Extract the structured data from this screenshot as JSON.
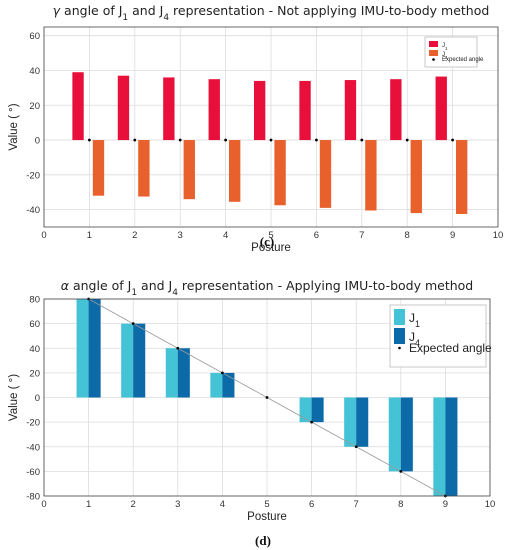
{
  "chart_data": [
    {
      "type": "bar",
      "title": "γ angle of J1 and J4 representation - Not applying IMU-to-body method",
      "title_symbol": "γ",
      "title_rest": " angle of J",
      "title_sub1": "1",
      "title_mid": " and J",
      "title_sub2": "4",
      "title_tail": " representation - Not applying IMU-to-body method",
      "xlabel": "Posture",
      "ylabel": "Value ( °)",
      "xlim": [
        0,
        10
      ],
      "ylim": [
        -50,
        65
      ],
      "xticks": [
        0,
        1,
        2,
        3,
        4,
        5,
        6,
        7,
        8,
        9,
        10
      ],
      "yticks": [
        -40,
        -20,
        0,
        20,
        40,
        60
      ],
      "grid": true,
      "legend_position": "top-right",
      "caption": "(c)",
      "x": [
        1,
        2,
        3,
        4,
        5,
        6,
        7,
        8,
        9
      ],
      "series": [
        {
          "name": "J1",
          "legend_main": "J",
          "legend_sub": "1",
          "color": "#e8103a",
          "values": [
            39,
            37,
            36,
            35,
            34,
            34,
            34.5,
            35,
            36.5
          ]
        },
        {
          "name": "J4",
          "legend_main": "J",
          "legend_sub": "4",
          "color": "#e8602c",
          "values": [
            -32,
            -32.5,
            -34,
            -35.5,
            -37.5,
            -39,
            -40.5,
            -42,
            -42.5
          ]
        },
        {
          "name": "Expected angle",
          "color": "#000000",
          "values": [
            0,
            0,
            0,
            0,
            0,
            0,
            0,
            0,
            0
          ]
        }
      ]
    },
    {
      "type": "bar",
      "title": "α angle of J1 and J4 representation - Applying IMU-to-body method",
      "title_symbol": "α",
      "title_rest": " angle of J",
      "title_sub1": "1",
      "title_mid": " and J",
      "title_sub2": "4",
      "title_tail": " representation - Applying IMU-to-body method",
      "xlabel": "Posture",
      "ylabel": "Value ( °)",
      "xlim": [
        0,
        10
      ],
      "ylim": [
        -80,
        80
      ],
      "xticks": [
        0,
        1,
        2,
        3,
        4,
        5,
        6,
        7,
        8,
        9,
        10
      ],
      "yticks": [
        -80,
        -60,
        -40,
        -20,
        0,
        20,
        40,
        60,
        80
      ],
      "grid": true,
      "legend_position": "top-right",
      "caption": "(d)",
      "x": [
        1,
        2,
        3,
        4,
        5,
        6,
        7,
        8,
        9
      ],
      "series": [
        {
          "name": "J1",
          "legend_main": "J",
          "legend_sub": "1",
          "color": "#45c3d6",
          "values": [
            80,
            60,
            40,
            20,
            0,
            -20,
            -40,
            -60,
            -80
          ]
        },
        {
          "name": "J4",
          "legend_main": "J",
          "legend_sub": "4",
          "color": "#0d6aa8",
          "values": [
            80,
            60,
            40,
            20,
            0,
            -20,
            -40,
            -60,
            -80
          ]
        },
        {
          "name": "Expected angle",
          "color": "#000000",
          "values": [
            80,
            60,
            40,
            20,
            0,
            -20,
            -40,
            -60,
            -80
          ]
        }
      ]
    }
  ]
}
